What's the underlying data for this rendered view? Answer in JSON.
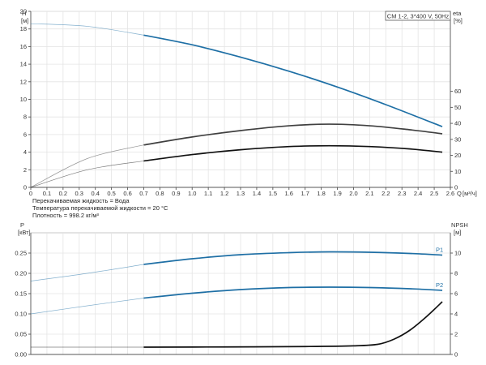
{
  "chart_data": [
    {
      "type": "line",
      "title": "CM 1-2, 3*400 V, 50Hz",
      "xlabel": "Q [м³/ч]",
      "x_unit": "[м³/ч]",
      "x_axis_title": "Q",
      "xlim": [
        0,
        2.6
      ],
      "xticks": [
        "0",
        "0.1",
        "0.2",
        "0.3",
        "0.4",
        "0.5",
        "0.6",
        "0.7",
        "0.8",
        "0.9",
        "1.0",
        "1.1",
        "1.2",
        "1.3",
        "1.4",
        "1.5",
        "1.6",
        "1.7",
        "1.8",
        "1.9",
        "2.0",
        "2.1",
        "2.2",
        "2.3",
        "2.4",
        "2.5",
        "2.6"
      ],
      "y_left": {
        "title": "H",
        "unit": "[м]",
        "lim": [
          0,
          20
        ],
        "ticks": [
          "0",
          "2",
          "4",
          "6",
          "8",
          "10",
          "12",
          "14",
          "16",
          "18",
          "20"
        ]
      },
      "y_right": {
        "title": "eta",
        "unit": "[%]",
        "lim": [
          0,
          110
        ],
        "ticks": [
          "0",
          "10",
          "20",
          "30",
          "40",
          "50",
          "60"
        ]
      },
      "grid": true,
      "operating_range_start_q": 0.7,
      "series": [
        {
          "axis": "left",
          "color": "#1e6fa5",
          "x": [
            0,
            0.35,
            0.7,
            1.0,
            1.3,
            1.6,
            1.9,
            2.2,
            2.55
          ],
          "y": [
            18.6,
            18.3,
            17.3,
            16.2,
            14.8,
            13.2,
            11.4,
            9.4,
            6.9
          ]
        },
        {
          "axis": "right",
          "color": "#404040",
          "x": [
            0,
            0.35,
            0.7,
            1.0,
            1.3,
            1.6,
            1.85,
            2.1,
            2.35,
            2.55
          ],
          "y": [
            0,
            18,
            26.5,
            31.5,
            35.5,
            38.5,
            39.5,
            38.5,
            36,
            33.5
          ]
        },
        {
          "axis": "right",
          "color": "#111111",
          "x": [
            0,
            0.35,
            0.7,
            1.0,
            1.3,
            1.6,
            1.85,
            2.1,
            2.35,
            2.55
          ],
          "y": [
            0,
            11,
            16.5,
            20.5,
            23.5,
            25.5,
            26,
            25.5,
            24,
            22
          ]
        }
      ],
      "notes": [
        "Перекачиваемая жидкость = Вода",
        "Температура перекачиваемой жидкости = 20 °C",
        "Плотность = 998.2 кг/м³"
      ]
    },
    {
      "type": "line",
      "xlim": [
        0,
        2.6
      ],
      "y_left": {
        "title": "P",
        "unit": "[кВт]",
        "lim": [
          0,
          0.3
        ],
        "ticks": [
          "0.00",
          "0.05",
          "0.10",
          "0.15",
          "0.20",
          "0.25"
        ]
      },
      "y_right": {
        "title": "NPSH",
        "unit": "[м]",
        "lim": [
          0,
          12
        ],
        "ticks": [
          "0",
          "2",
          "4",
          "6",
          "8",
          "10"
        ]
      },
      "grid": true,
      "operating_range_start_q": 0.7,
      "series": [
        {
          "name": "P1",
          "axis": "left",
          "color": "#1e6fa5",
          "x": [
            0,
            0.35,
            0.7,
            1.0,
            1.3,
            1.6,
            1.85,
            2.1,
            2.35,
            2.55
          ],
          "y": [
            0.181,
            0.2,
            0.222,
            0.236,
            0.246,
            0.251,
            0.253,
            0.252,
            0.249,
            0.245
          ]
        },
        {
          "name": "P2",
          "axis": "left",
          "color": "#1e6fa5",
          "x": [
            0,
            0.35,
            0.7,
            1.0,
            1.3,
            1.6,
            1.85,
            2.1,
            2.35,
            2.55
          ],
          "y": [
            0.1,
            0.12,
            0.139,
            0.151,
            0.16,
            0.165,
            0.166,
            0.165,
            0.162,
            0.158
          ]
        },
        {
          "axis": "right",
          "color": "#111111",
          "x": [
            0,
            0.35,
            0.7,
            1.2,
            1.7,
            2.0,
            2.15,
            2.25,
            2.35,
            2.45,
            2.55
          ],
          "y": [
            0.72,
            0.72,
            0.72,
            0.74,
            0.78,
            0.85,
            1.0,
            1.5,
            2.4,
            3.7,
            5.2
          ]
        }
      ]
    }
  ]
}
